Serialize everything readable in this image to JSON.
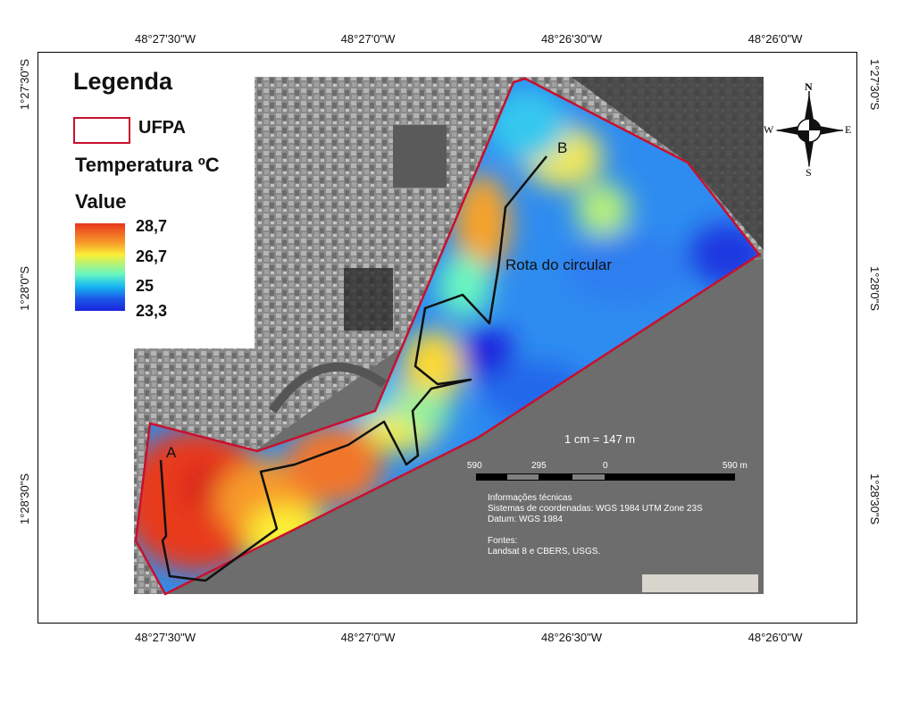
{
  "coords": {
    "top": [
      "48°27'30\"W",
      "48°27'0\"W",
      "48°26'30\"W",
      "48°26'0\"W"
    ],
    "bottom": [
      "48°27'30\"W",
      "48°27'0\"W",
      "48°26'30\"W",
      "48°26'0\"W"
    ],
    "left": [
      "1°27'30\"S",
      "1°28'0\"S",
      "1°28'30\"S"
    ],
    "right": [
      "1°27'30\"S",
      "1°28'0\"S",
      "1°28'30\"S"
    ]
  },
  "legend": {
    "title": "Legenda",
    "ufpa_label": "UFPA",
    "temp_label": "Temperatura ºC",
    "value_label": "Value",
    "ramp_values": [
      "28,7",
      "26,7",
      "25",
      "23,3"
    ],
    "colors": {
      "boundary": "#c8102e",
      "hot": "#e8361c",
      "warm": "#fbef36",
      "mid": "#17b8f3",
      "cold": "#1a24dc"
    }
  },
  "compass": {
    "n": "N",
    "s": "S",
    "e": "E",
    "w": "W"
  },
  "map": {
    "point_a": "A",
    "point_b": "B",
    "route_label": "Rota do circular",
    "scale_ratio": "1 cm = 147 m",
    "scale_ticks": [
      "590",
      "295",
      "0",
      "590 m"
    ]
  },
  "info": {
    "line1": "Informações técnicas",
    "line2": "Sistemas de coordenadas: WGS 1984 UTM Zone 23S",
    "line3": "Datum: WGS 1984",
    "line4": "Fontes:",
    "line5": "Landsat 8 e CBERS, USGS."
  }
}
